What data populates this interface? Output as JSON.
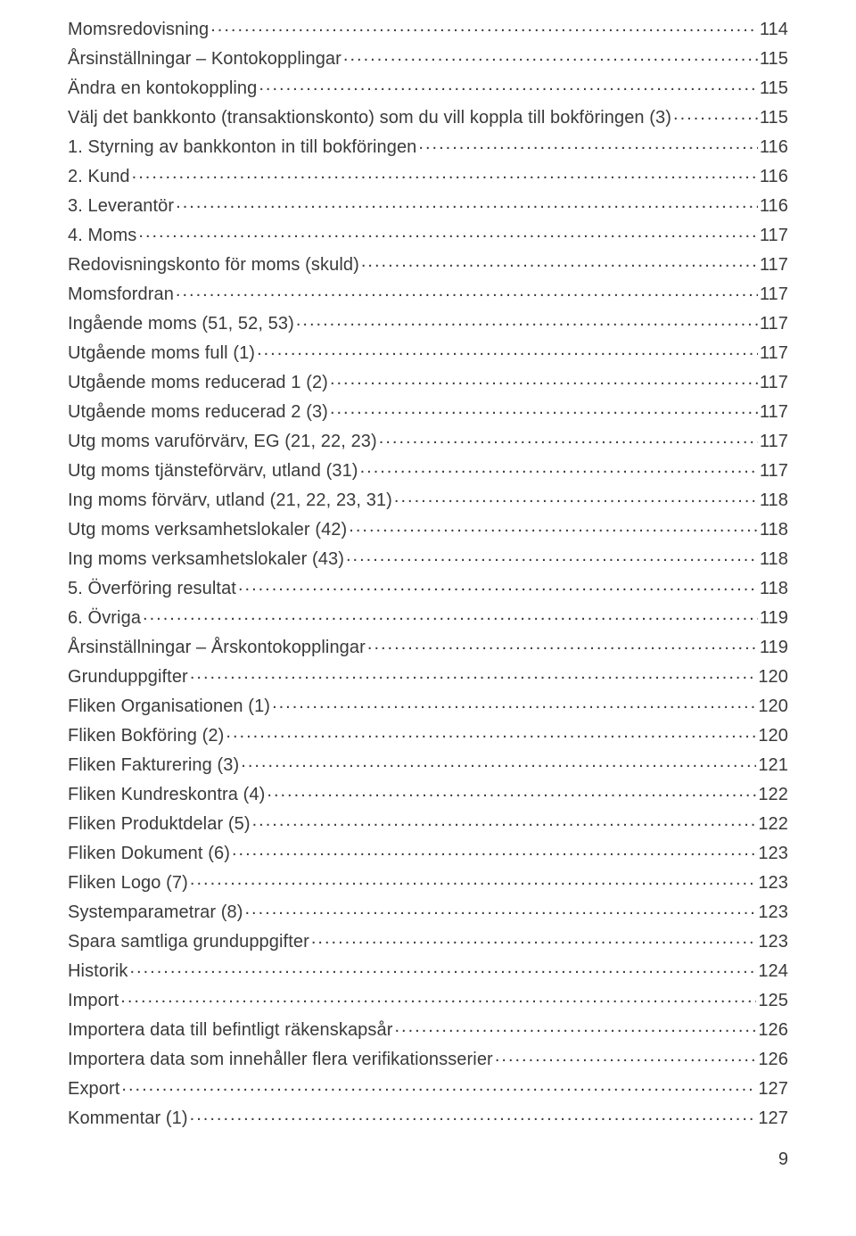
{
  "page_number": "9",
  "toc": [
    {
      "title": "Momsredovisning",
      "page": "114"
    },
    {
      "title": "Årsinställningar – Kontokopplingar",
      "page": "115"
    },
    {
      "title": "Ändra en kontokoppling",
      "page": "115"
    },
    {
      "title": "Välj det bankkonto (transaktionskonto) som du vill koppla till bokföringen (3)",
      "page": "115"
    },
    {
      "title": "1. Styrning av bankkonton in till bokföringen",
      "page": "116"
    },
    {
      "title": "2. Kund",
      "page": "116"
    },
    {
      "title": "3. Leverantör",
      "page": "116"
    },
    {
      "title": "4. Moms",
      "page": "117"
    },
    {
      "title": "Redovisningskonto för moms (skuld)",
      "page": "117"
    },
    {
      "title": "Momsfordran",
      "page": "117"
    },
    {
      "title": "Ingående moms (51, 52, 53)",
      "page": "117"
    },
    {
      "title": "Utgående moms full (1)",
      "page": "117"
    },
    {
      "title": "Utgående moms reducerad 1 (2)",
      "page": "117"
    },
    {
      "title": "Utgående moms reducerad 2 (3)",
      "page": "117"
    },
    {
      "title": "Utg moms varuförvärv, EG (21, 22, 23)",
      "page": "117"
    },
    {
      "title": "Utg moms tjänsteförvärv, utland (31)",
      "page": "117"
    },
    {
      "title": "Ing moms förvärv, utland (21, 22, 23, 31)",
      "page": "118"
    },
    {
      "title": "Utg moms verksamhetslokaler (42)",
      "page": "118"
    },
    {
      "title": "Ing moms verksamhetslokaler (43)",
      "page": "118"
    },
    {
      "title": "5. Överföring resultat",
      "page": "118"
    },
    {
      "title": "6. Övriga",
      "page": "119"
    },
    {
      "title": "Årsinställningar – Årskontokopplingar",
      "page": "119"
    },
    {
      "title": "Grunduppgifter",
      "page": "120"
    },
    {
      "title": "Fliken Organisationen (1)",
      "page": "120"
    },
    {
      "title": "Fliken Bokföring (2)",
      "page": "120"
    },
    {
      "title": "Fliken Fakturering (3)",
      "page": "121"
    },
    {
      "title": "Fliken Kundreskontra (4)",
      "page": "122"
    },
    {
      "title": "Fliken Produktdelar (5)",
      "page": "122"
    },
    {
      "title": "Fliken Dokument (6)",
      "page": "123"
    },
    {
      "title": "Fliken Logo (7)",
      "page": "123"
    },
    {
      "title": "Systemparametrar (8)",
      "page": "123"
    },
    {
      "title": "Spara samtliga grunduppgifter",
      "page": "123"
    },
    {
      "title": "Historik",
      "page": "124"
    },
    {
      "title": "Import",
      "page": "125"
    },
    {
      "title": "Importera data till befintligt räkenskapsår",
      "page": "126"
    },
    {
      "title": "Importera data som innehåller flera verifikationsserier",
      "page": "126"
    },
    {
      "title": "Export",
      "page": "127"
    },
    {
      "title": "Kommentar (1)",
      "page": "127"
    }
  ]
}
